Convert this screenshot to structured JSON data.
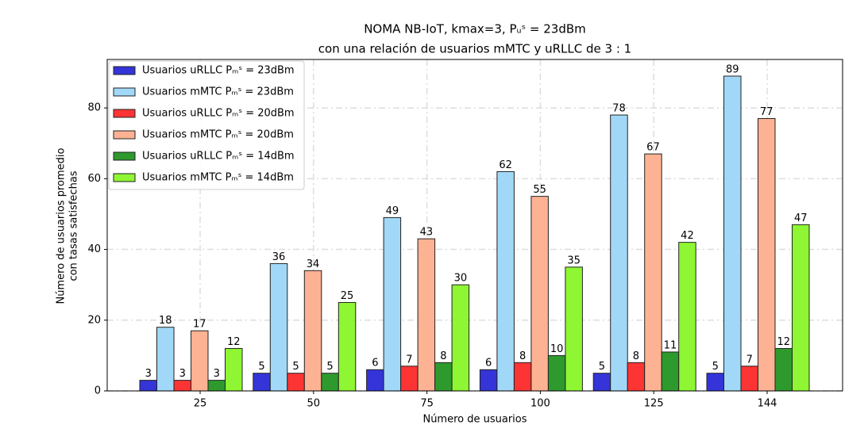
{
  "chart_data": {
    "type": "bar",
    "title": [
      "NOMA NB-IoT, kmax=3, Pᵤˢ = 23dBm",
      "con una relación de usuarios mMTC y uRLLC de 3 : 1"
    ],
    "x_label": "Número de usuarios",
    "y_label": [
      "Número de usuarios promedio",
      "con tasas satisfechas"
    ],
    "categories": [
      "25",
      "50",
      "75",
      "100",
      "125",
      "144"
    ],
    "series": [
      {
        "name": "Usuarios uRLLC Pₘˢ = 23dBm",
        "color": "#3434d8",
        "values": [
          3,
          5,
          6,
          6,
          5,
          5
        ]
      },
      {
        "name": "Usuarios mMTC Pₘˢ = 23dBm",
        "color": "#a2d8f7",
        "values": [
          18,
          36,
          49,
          62,
          78,
          89
        ]
      },
      {
        "name": "Usuarios uRLLC Pₘˢ = 20dBm",
        "color": "#fc3434",
        "values": [
          3,
          5,
          7,
          8,
          8,
          7
        ]
      },
      {
        "name": "Usuarios mMTC Pₘˢ = 20dBm",
        "color": "#fdb293",
        "values": [
          17,
          34,
          43,
          55,
          67,
          77
        ]
      },
      {
        "name": "Usuarios uRLLC Pₘˢ = 14dBm",
        "color": "#2e9a2e",
        "values": [
          3,
          5,
          8,
          10,
          11,
          12
        ]
      },
      {
        "name": "Usuarios mMTC Pₘˢ = 14dBm",
        "color": "#8ef632",
        "values": [
          12,
          25,
          30,
          35,
          42,
          47
        ]
      }
    ],
    "ylim": [
      0,
      93.7
    ],
    "yticks": [
      0,
      20,
      40,
      60,
      80
    ],
    "grid": true,
    "legend": "upper left"
  }
}
